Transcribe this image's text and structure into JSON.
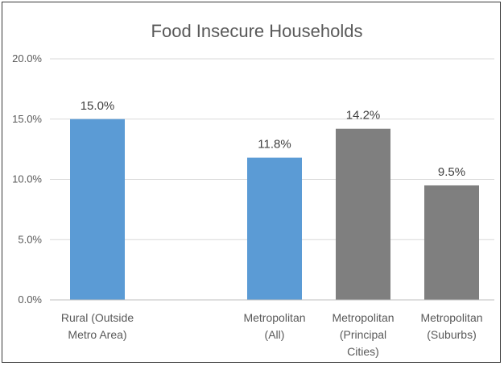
{
  "chart_data": {
    "type": "bar",
    "title": "Food Insecure Households",
    "xlabel": "",
    "ylabel": "",
    "ylim": [
      0,
      20
    ],
    "yticks": [
      "0.0%",
      "5.0%",
      "10.0%",
      "15.0%",
      "20.0%"
    ],
    "ytick_values": [
      0,
      5,
      10,
      15,
      20
    ],
    "grid": true,
    "legend": "none",
    "categories": [
      [
        "Rural (Outside",
        "Metro Area)"
      ],
      [
        "Metropolitan",
        "(All)"
      ],
      [
        "Metropolitan",
        "(Principal",
        "Cities)"
      ],
      [
        "Metropolitan",
        "(Suburbs)"
      ]
    ],
    "values": [
      15.0,
      11.8,
      14.2,
      9.5
    ],
    "data_labels": [
      "15.0%",
      "11.8%",
      "14.2%",
      "9.5%"
    ],
    "bar_colors": [
      "#5b9bd5",
      "#5b9bd5",
      "#7f7f7f",
      "#7f7f7f"
    ],
    "gridline_color": "#d9d9d9",
    "axis_color": "#bfbfbf"
  }
}
